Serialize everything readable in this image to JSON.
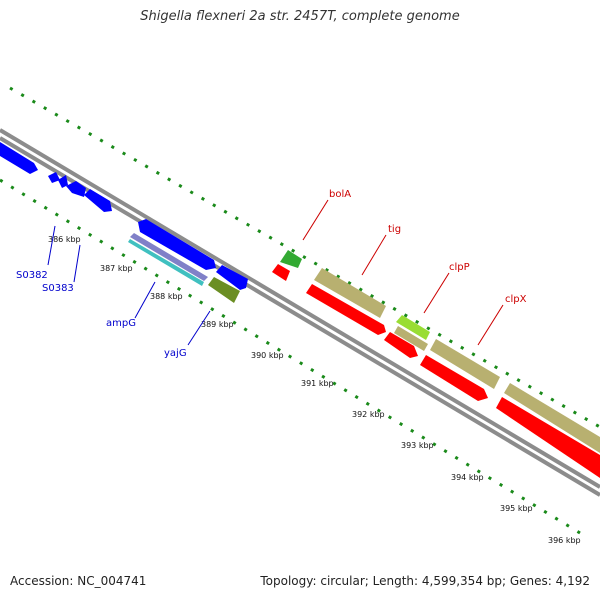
{
  "title": "Shigella flexneri 2a str. 2457T, complete genome",
  "footer": {
    "accession": "Accession: NC_004741",
    "summary": "Topology: circular; Length: 4,599,354 bp; Genes: 4,192"
  },
  "colors": {
    "backbone": "#8c8c8c",
    "tick": "#1a8a1a",
    "forward_gene": "#0000ff",
    "reverse_gene": "#ff0000",
    "label_blue": "#0000cc",
    "label_red": "#cc0000"
  },
  "tick_labels": [
    "386 kbp",
    "387 kbp",
    "388 kbp",
    "389 kbp",
    "390 kbp",
    "391 kbp",
    "392 kbp",
    "393 kbp",
    "394 kbp",
    "395 kbp",
    "396 kbp"
  ],
  "gene_labels": {
    "left": [
      "S0382",
      "S0383",
      "ampG",
      "yajG"
    ],
    "right": [
      "bolA",
      "tig",
      "clpP",
      "clpX"
    ]
  }
}
